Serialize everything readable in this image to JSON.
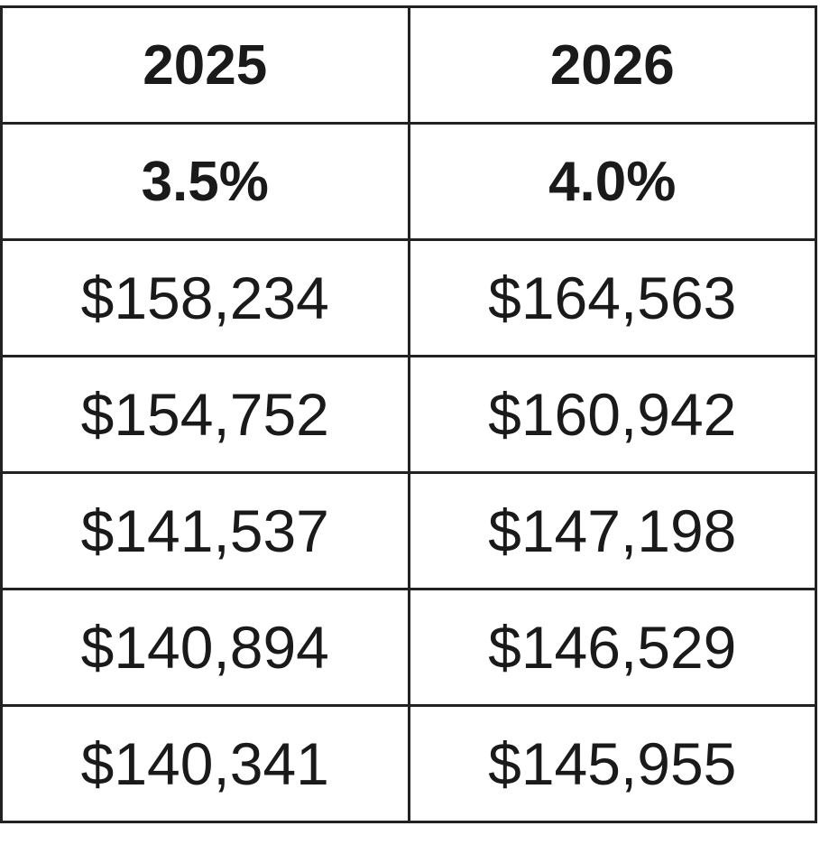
{
  "table": {
    "rows": [
      [
        "2025",
        "2026"
      ],
      [
        "3.5%",
        "4.0%"
      ],
      [
        "$158,234",
        "$164,563"
      ],
      [
        "$154,752",
        "$160,942"
      ],
      [
        "$141,537",
        "$147,198"
      ],
      [
        "$140,894",
        "$146,529"
      ],
      [
        "$140,341",
        "$145,955"
      ]
    ]
  }
}
